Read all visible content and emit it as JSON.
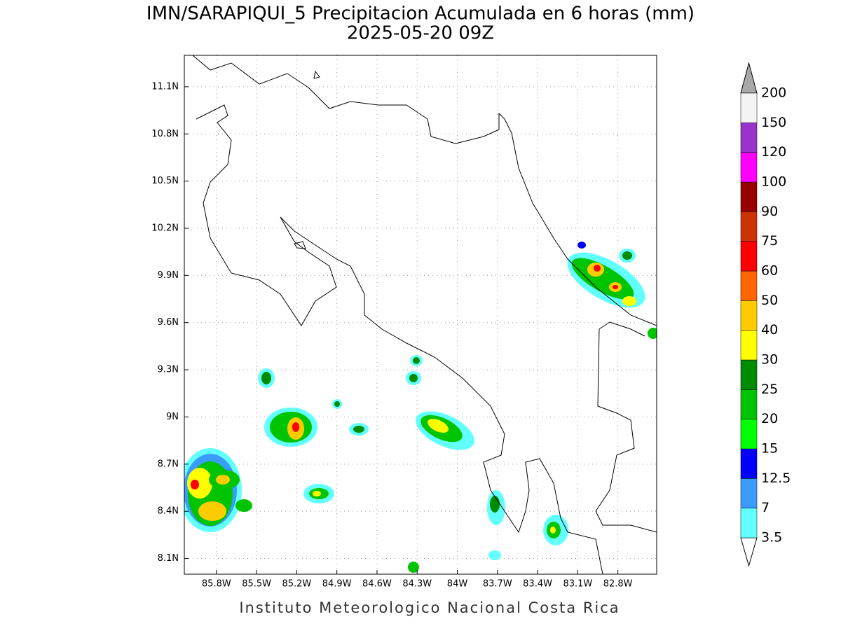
{
  "map": {
    "title": "IMN/SARAPIQUI_5 Precipitacion Acumulada en 6 horas (mm)",
    "subtitle": "2025-05-20 09Z",
    "footer": "Instituto Meteorologico Nacional Costa Rica",
    "xlim": [
      -86.04,
      -82.51
    ],
    "ylim": [
      8.0,
      11.3
    ],
    "grid": true,
    "xticks": [
      {
        "value": -85.8,
        "label": "85.8W"
      },
      {
        "value": -85.5,
        "label": "85.5W"
      },
      {
        "value": -85.2,
        "label": "85.2W"
      },
      {
        "value": -84.9,
        "label": "84.9W"
      },
      {
        "value": -84.6,
        "label": "84.6W"
      },
      {
        "value": -84.3,
        "label": "84.3W"
      },
      {
        "value": -84.0,
        "label": "84W"
      },
      {
        "value": -83.7,
        "label": "83.7W"
      },
      {
        "value": -83.4,
        "label": "83.4W"
      },
      {
        "value": -83.1,
        "label": "83.1W"
      },
      {
        "value": -82.8,
        "label": "82.8W"
      }
    ],
    "yticks": [
      {
        "value": 8.1,
        "label": "8.1N"
      },
      {
        "value": 8.4,
        "label": "8.4N"
      },
      {
        "value": 8.7,
        "label": "8.7N"
      },
      {
        "value": 9.0,
        "label": "9N"
      },
      {
        "value": 9.3,
        "label": "9.3N"
      },
      {
        "value": 9.6,
        "label": "9.6N"
      },
      {
        "value": 9.9,
        "label": "9.9N"
      },
      {
        "value": 10.2,
        "label": "10.2N"
      },
      {
        "value": 10.5,
        "label": "10.5N"
      },
      {
        "value": 10.8,
        "label": "10.8N"
      },
      {
        "value": 11.1,
        "label": "11.1N"
      }
    ],
    "colorbar": {
      "levels": [
        3.5,
        7,
        12.5,
        15,
        20,
        25,
        30,
        40,
        50,
        60,
        75,
        90,
        100,
        120,
        150,
        200
      ],
      "colors": [
        "#62ffff",
        "#3a9cff",
        "#0000ff",
        "#00ff00",
        "#00c400",
        "#008c00",
        "#ffff00",
        "#ffcc00",
        "#ff6600",
        "#ff0000",
        "#cc3300",
        "#990000",
        "#ff00ff",
        "#9933cc",
        "#f4f4f4"
      ],
      "below_color": "#ffffff",
      "above_color": "#a8a8a8"
    }
  }
}
